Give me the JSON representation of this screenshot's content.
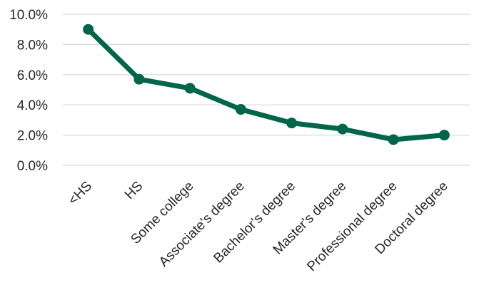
{
  "chart_data": {
    "type": "line",
    "categories": [
      "<HS",
      "HS",
      "Some college",
      "Associate's degree",
      "Bachelor's degree",
      "Master's degree",
      "Professional degree",
      "Doctoral degree"
    ],
    "series": [
      {
        "values": [
          9.0,
          5.7,
          5.1,
          3.7,
          2.8,
          2.4,
          1.7,
          2.0
        ],
        "color": "#00664a"
      }
    ],
    "y_ticks": [
      "10.0%",
      "8.0%",
      "6.0%",
      "4.0%",
      "2.0%",
      "0.0%"
    ],
    "ylim": [
      0,
      10
    ],
    "y_tick_values": [
      10,
      8,
      6,
      4,
      2,
      0
    ],
    "grid": true,
    "gridline_color": "#d9d9d9",
    "legend": "none"
  }
}
